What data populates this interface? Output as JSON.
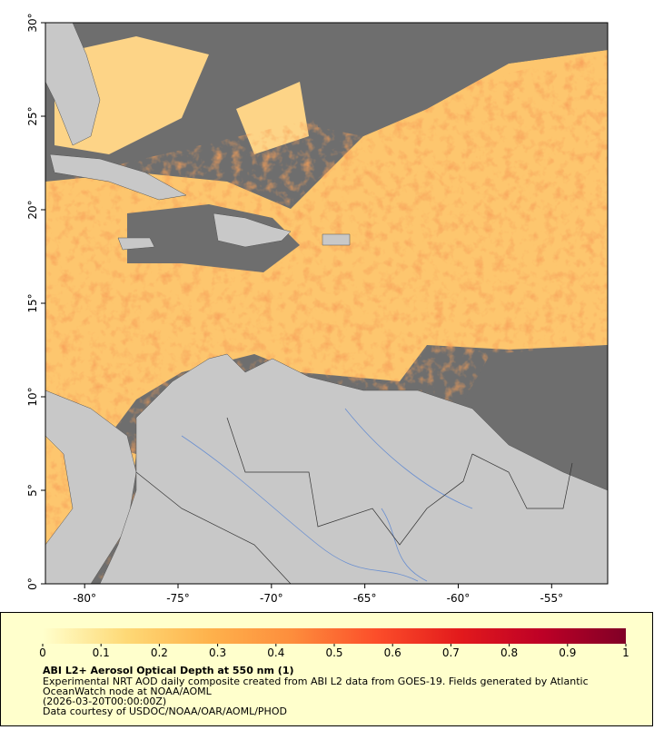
{
  "map": {
    "xlim": [
      -82.1,
      -52
    ],
    "ylim": [
      0,
      30
    ],
    "xticks": [
      {
        "value": -80,
        "label": "-80°"
      },
      {
        "value": -75,
        "label": "-75°"
      },
      {
        "value": -70,
        "label": "-70°"
      },
      {
        "value": -65,
        "label": "-65°"
      },
      {
        "value": -60,
        "label": "-60°"
      },
      {
        "value": -55,
        "label": "-55°"
      }
    ],
    "yticks": [
      {
        "value": 0,
        "label": "0°"
      },
      {
        "value": 5,
        "label": "5°"
      },
      {
        "value": 10,
        "label": "10°"
      },
      {
        "value": 15,
        "label": "15°"
      },
      {
        "value": 20,
        "label": "20°"
      },
      {
        "value": 25,
        "label": "25°"
      },
      {
        "value": 30,
        "label": "30°"
      }
    ]
  },
  "colorbar": {
    "range": [
      0,
      1
    ],
    "ticks": [
      0,
      0.1,
      0.2,
      0.3,
      0.4,
      0.5,
      0.6,
      0.7,
      0.8,
      0.9,
      1
    ],
    "colors": [
      "#ffffcc",
      "#fed976",
      "#feb24c",
      "#fd8d3c",
      "#fc4e2a",
      "#e31a1c",
      "#bd0026",
      "#800026"
    ]
  },
  "caption": {
    "title": "ABI L2+ Aerosol Optical Depth at 550 nm (1)",
    "lines": [
      "Experimental NRT AOD daily composite created from ABI L2 data from GOES-19. Fields generated by Atlantic",
      "OceanWatch node at NOAA/AOML",
      "(2026-03-20T00:00:00Z)",
      "Data courtesy of USDOC/NOAA/OAR/AOML/PHOD"
    ]
  }
}
